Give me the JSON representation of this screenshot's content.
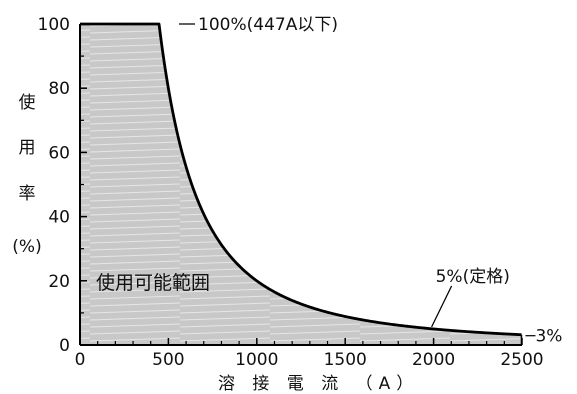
{
  "chart_data": {
    "type": "area",
    "title": "",
    "xlabel": "溶 接 電 流 （A）",
    "ylabel_chars": [
      "使",
      "用",
      "率"
    ],
    "ylabel_unit": "(%)",
    "xlim": [
      0,
      2500
    ],
    "ylim": [
      0,
      100
    ],
    "x_ticks": [
      0,
      500,
      1000,
      1500,
      2000,
      2500
    ],
    "y_ticks": [
      0,
      20,
      40,
      60,
      80,
      100
    ],
    "x_tick_labels": [
      "0",
      "500",
      "1000",
      "1500",
      "2000",
      "2500"
    ],
    "y_tick_labels": [
      "0",
      "20",
      "40",
      "60",
      "80",
      "100"
    ],
    "grid": false,
    "series": [
      {
        "x": [
          0,
          447,
          500,
          550,
          600,
          700,
          800,
          900,
          1000,
          1200,
          1400,
          1600,
          1800,
          2000,
          2200,
          2400,
          2500
        ],
        "y": [
          100,
          100,
          79.9,
          66.1,
          55.5,
          40.8,
          31.2,
          24.7,
          20.0,
          13.9,
          10.2,
          7.8,
          6.2,
          5.0,
          4.1,
          3.5,
          3.2
        ]
      }
    ],
    "region_label": "使用可能範囲",
    "annotations": [
      {
        "text": "100%(447A以下)",
        "x": 447,
        "y": 100
      },
      {
        "text": "5%(定格)",
        "x": 2000,
        "y": 5
      },
      {
        "text": "3%",
        "x": 2500,
        "y": 3
      }
    ],
    "colors": {
      "fill": "#c8c8c8",
      "hatch": "#e6e6e6",
      "curve": "#000000",
      "axis": "#000000"
    }
  }
}
